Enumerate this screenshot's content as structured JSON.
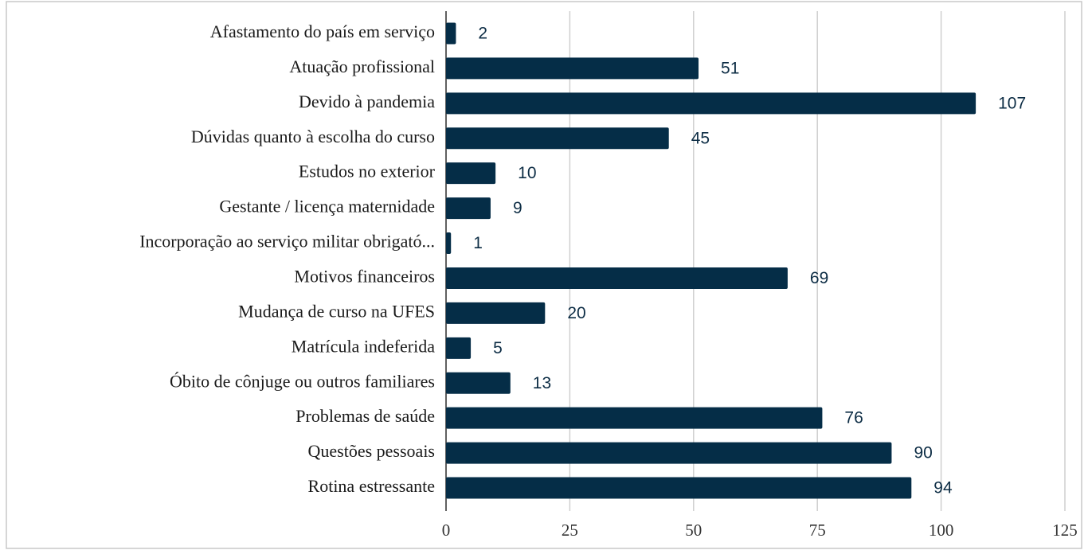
{
  "chart_data": {
    "type": "bar",
    "orientation": "horizontal",
    "categories": [
      "Afastamento do país em serviço",
      "Atuação profissional",
      "Devido à pandemia",
      "Dúvidas quanto à escolha do curso",
      "Estudos no exterior",
      "Gestante / licença maternidade",
      "Incorporação ao serviço militar obrigató...",
      "Motivos financeiros",
      "Mudança de curso na UFES",
      "Matrícula indeferida",
      "Óbito de cônjuge ou outros familiares",
      "Problemas de saúde",
      "Questões pessoais",
      "Rotina estressante"
    ],
    "values": [
      2,
      51,
      107,
      45,
      10,
      9,
      1,
      69,
      20,
      5,
      13,
      76,
      90,
      94
    ],
    "color": "#052d47",
    "xlim": [
      0,
      125
    ],
    "xticks": [
      0,
      25,
      50,
      75,
      100,
      125
    ],
    "grid": true
  }
}
